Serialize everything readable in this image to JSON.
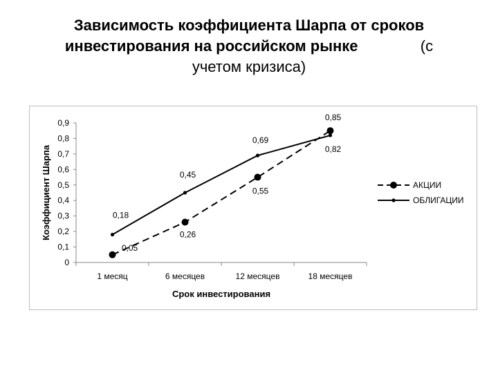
{
  "slide": {
    "title_line1": "Зависимость коэффициента Шарпа от сроков",
    "title_line2": "инвестирования на российском рынке",
    "title_line2_tail": "(с",
    "title_line3": "учетом кризиса)"
  },
  "chart_data": {
    "type": "line",
    "title": "",
    "xlabel": "Срок инвестирования",
    "ylabel": "Коэффициент Шарпа",
    "categories": [
      "1 месяц",
      "6 месяцев",
      "12 месяцев",
      "18 месяцев"
    ],
    "ylim": [
      0,
      0.9
    ],
    "yticks": [
      0,
      0.1,
      0.2,
      0.3,
      0.4,
      0.5,
      0.6,
      0.7,
      0.8,
      0.9
    ],
    "grid": false,
    "legend_position": "right",
    "series": [
      {
        "name": "АКЦИИ",
        "values": [
          0.05,
          0.26,
          0.55,
          0.85
        ],
        "labels": [
          "0,05",
          "0,26",
          "0,55",
          "0,85"
        ],
        "style": "dashed",
        "marker": "large-dot",
        "color": "#000000"
      },
      {
        "name": "ОБЛИГАЦИИ",
        "values": [
          0.18,
          0.45,
          0.69,
          0.82
        ],
        "labels": [
          "0,18",
          "0,45",
          "0,69",
          "0,82"
        ],
        "style": "solid",
        "marker": "small-dot",
        "color": "#000000"
      }
    ]
  }
}
